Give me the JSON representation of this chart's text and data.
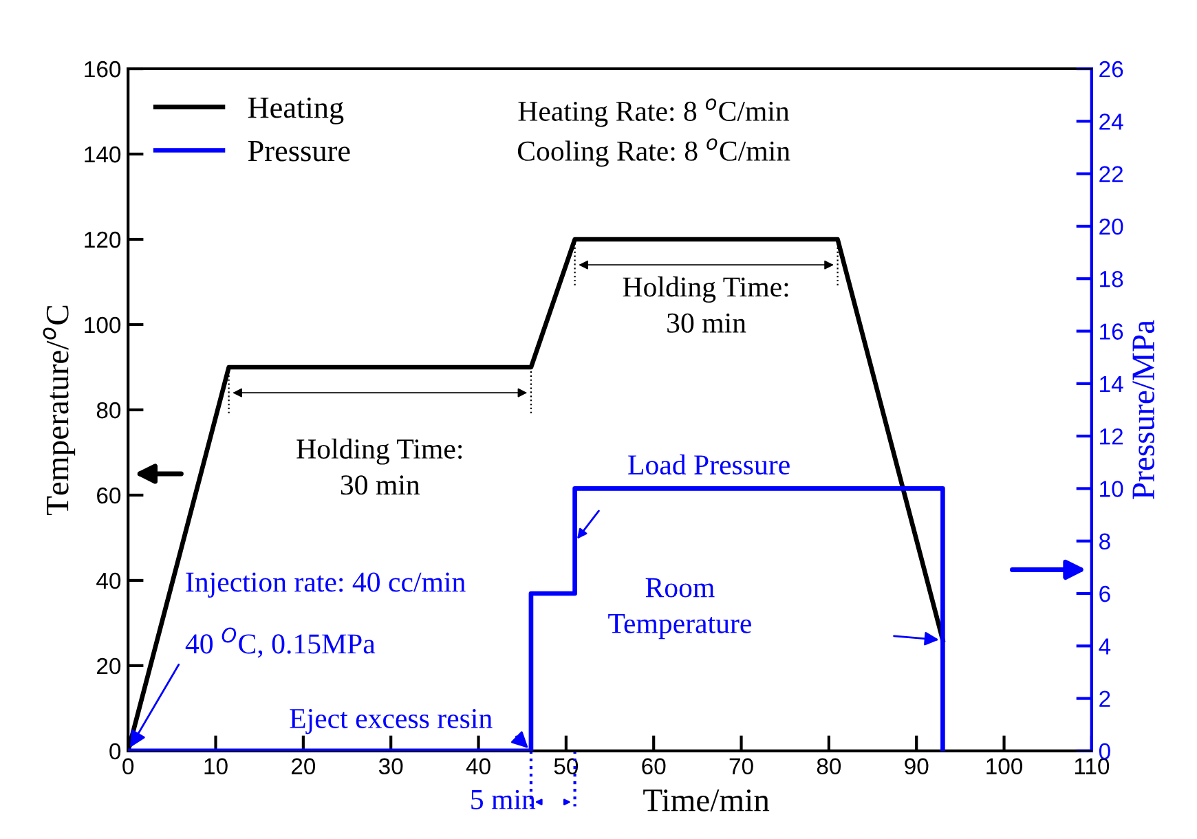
{
  "chart_data": {
    "type": "line",
    "xlabel": "Time/min",
    "ylabel": "Temperature/$^{o}$C",
    "y2label": "Pressure/MPa",
    "xlim": [
      0,
      110
    ],
    "xticks": [
      0,
      10,
      20,
      30,
      40,
      50,
      60,
      70,
      80,
      90,
      100,
      110
    ],
    "ylim": [
      0,
      160
    ],
    "yticks": [
      0,
      20,
      40,
      60,
      80,
      100,
      120,
      140,
      160
    ],
    "y2lim": [
      0,
      26
    ],
    "y2ticks": [
      0,
      2,
      4,
      6,
      8,
      10,
      12,
      14,
      16,
      18,
      20,
      22,
      24,
      26
    ],
    "grid": false,
    "legend": "top left",
    "marker": "none",
    "line_style": "solid",
    "series": [
      {
        "name": "Heating",
        "color": "#000000",
        "x": [
          0,
          11.5,
          46,
          51,
          81,
          93
        ],
        "values": [
          0,
          90,
          90,
          120,
          120,
          26
        ]
      },
      {
        "name": "Pressure",
        "color": "#0000ff",
        "axis": "y2",
        "x": [
          0,
          46,
          46,
          51,
          51,
          93,
          93
        ],
        "values": [
          0,
          0,
          6,
          6,
          10,
          10,
          0
        ]
      }
    ],
    "annotations": [
      "Heating Rate: 8 $^{o}$C/min\nCooling Rate: 8 $^{o}$C/min",
      "Holding Time:\n30 min",
      "Holding Time:\n30 min",
      "Injection rate: 40 cc/min",
      {
        "text": "40 $^{O}$C, 0.15MPa",
        "x": 0,
        "y": 0
      },
      {
        "text": "Eject excess resin",
        "x": 46,
        "y": 0
      },
      "Load Pressure",
      "Room\nTemperature",
      "5 min"
    ]
  }
}
